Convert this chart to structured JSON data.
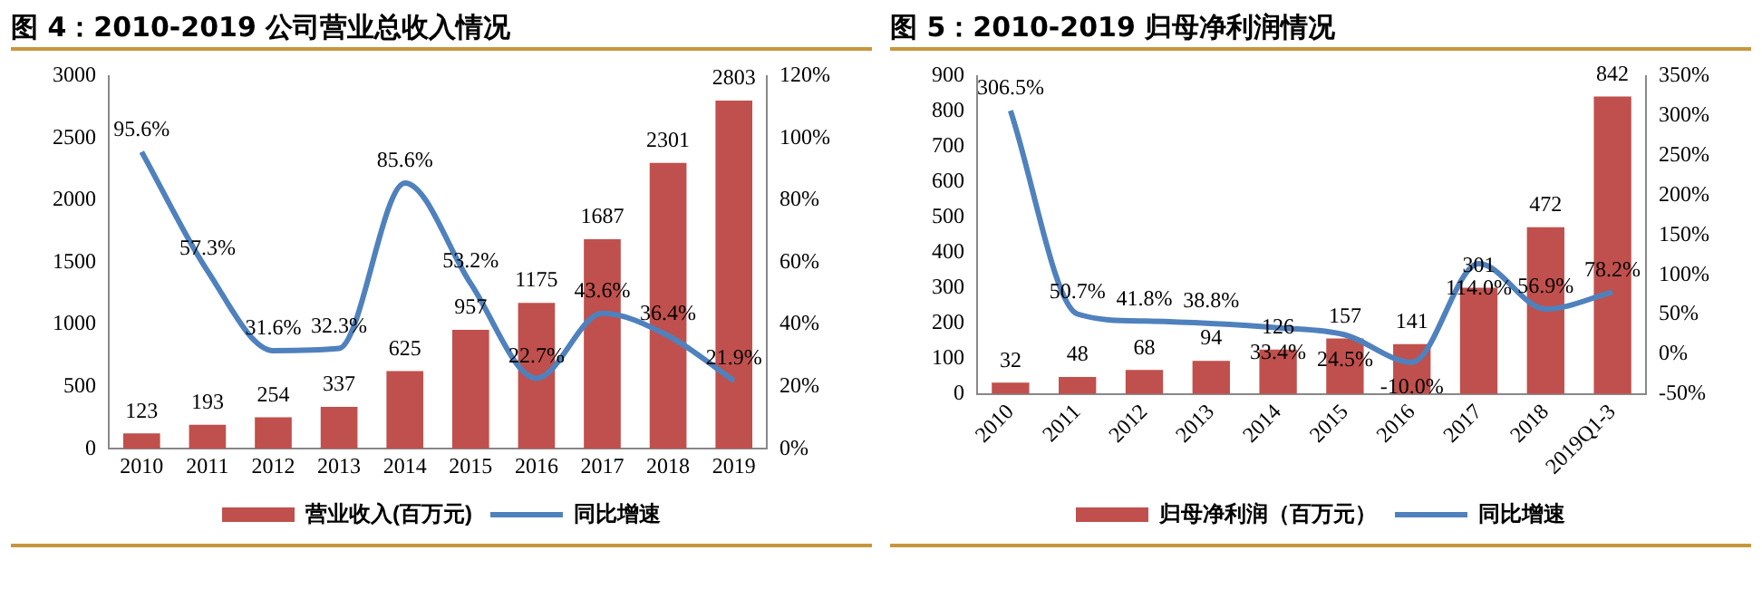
{
  "chart_data": [
    {
      "type": "bar",
      "title": "图 4：2010-2019 公司营业总收入情况",
      "categories": [
        "2010",
        "2011",
        "2012",
        "2013",
        "2014",
        "2015",
        "2016",
        "2017",
        "2018",
        "2019"
      ],
      "series": [
        {
          "name": "营业收入(百万元)",
          "color": "#c0504d",
          "values": [
            123,
            193,
            254,
            337,
            625,
            957,
            1175,
            1687,
            2301,
            2803
          ],
          "value_labels": [
            "123",
            "193",
            "254",
            "337",
            "625",
            "957",
            "1175",
            "1687",
            "2301",
            "2803"
          ]
        },
        {
          "name": "同比增速",
          "type": "line",
          "axis": "y2",
          "color": "#4f81bd",
          "values": [
            95.6,
            57.3,
            31.6,
            32.3,
            85.6,
            53.2,
            22.7,
            43.6,
            36.4,
            21.9
          ],
          "value_labels": [
            "95.6%",
            "57.3%",
            "31.6%",
            "32.3%",
            "85.6%",
            "53.2%",
            "22.7%",
            "43.6%",
            "36.4%",
            "21.9%"
          ]
        }
      ],
      "ylim": [
        0,
        3000
      ],
      "yticks": [
        0,
        500,
        1000,
        1500,
        2000,
        2500,
        3000
      ],
      "y2lim": [
        0,
        120
      ],
      "y2ticks": [
        {
          "value": 0,
          "label": "0%"
        },
        {
          "value": 20,
          "label": "20%"
        },
        {
          "value": 40,
          "label": "40%"
        },
        {
          "value": 60,
          "label": "60%"
        },
        {
          "value": 80,
          "label": "80%"
        },
        {
          "value": 100,
          "label": "100%"
        },
        {
          "value": 120,
          "label": "120%"
        }
      ],
      "grid": false,
      "legend": "bottom",
      "marker": "none",
      "line_style": "solid"
    },
    {
      "type": "bar",
      "title": "图 5：2010-2019 归母净利润情况",
      "categories": [
        "2010",
        "2011",
        "2012",
        "2013",
        "2014",
        "2015",
        "2016",
        "2017",
        "2018",
        "2019Q1-3"
      ],
      "series": [
        {
          "name": "归母净利润（百万元）",
          "color": "#c0504d",
          "values": [
            32,
            48,
            68,
            94,
            126,
            157,
            141,
            301,
            472,
            842
          ],
          "value_labels": [
            "32",
            "48",
            "68",
            "94",
            "126",
            "157",
            "141",
            "301",
            "472",
            "842"
          ]
        },
        {
          "name": "同比增速",
          "type": "line",
          "axis": "y2",
          "color": "#4f81bd",
          "values": [
            306.5,
            50.7,
            41.8,
            38.8,
            33.4,
            24.5,
            -10.0,
            114.0,
            56.9,
            78.2
          ],
          "value_labels": [
            "306.5%",
            "50.7%",
            "41.8%",
            "38.8%",
            "33.4%",
            "24.5%",
            "-10.0%",
            "114.0%",
            "56.9%",
            "78.2%"
          ]
        }
      ],
      "ylim": [
        0,
        900
      ],
      "yticks": [
        0,
        100,
        200,
        300,
        400,
        500,
        600,
        700,
        800,
        900
      ],
      "y2lim": [
        -50,
        350
      ],
      "y2ticks": [
        {
          "value": -50,
          "label": "-50%"
        },
        {
          "value": 0,
          "label": "0%"
        },
        {
          "value": 50,
          "label": "50%"
        },
        {
          "value": 100,
          "label": "100%"
        },
        {
          "value": 150,
          "label": "150%"
        },
        {
          "value": 200,
          "label": "200%"
        },
        {
          "value": 250,
          "label": "250%"
        },
        {
          "value": 300,
          "label": "300%"
        },
        {
          "value": 350,
          "label": "350%"
        }
      ],
      "grid": false,
      "legend": "bottom",
      "marker": "none",
      "line_style": "solid"
    }
  ]
}
